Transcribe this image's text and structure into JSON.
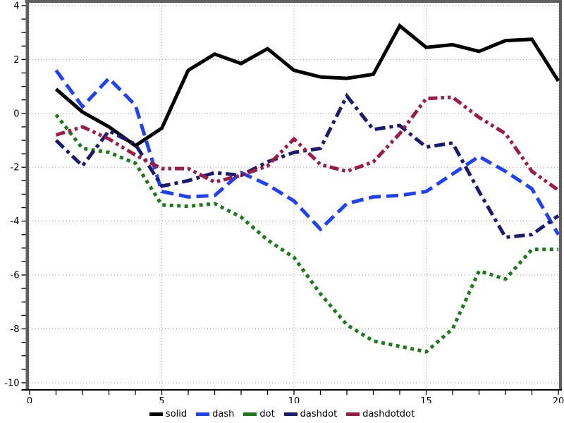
{
  "chart_data": {
    "type": "line",
    "title": "",
    "xlabel": "",
    "ylabel": "",
    "x": [
      1,
      2,
      3,
      4,
      5,
      6,
      7,
      8,
      9,
      10,
      11,
      12,
      13,
      14,
      15,
      16,
      17,
      18,
      19,
      20
    ],
    "series": [
      {
        "name": "solid",
        "style": "solid",
        "color": "#000000",
        "values": [
          0.9,
          0.05,
          -0.5,
          -1.2,
          -0.55,
          1.6,
          2.2,
          1.85,
          2.4,
          1.6,
          1.35,
          1.3,
          1.45,
          3.25,
          2.45,
          2.55,
          2.3,
          2.7,
          2.75,
          1.2
        ]
      },
      {
        "name": "dash",
        "style": "dash",
        "color": "#1e40ff",
        "values": [
          1.6,
          0.25,
          1.3,
          0.3,
          -2.9,
          -3.1,
          -3.05,
          -2.2,
          -2.65,
          -3.25,
          -4.3,
          -3.35,
          -3.1,
          -3.05,
          -2.9,
          -2.25,
          -1.6,
          -2.15,
          -2.8,
          -4.5
        ]
      },
      {
        "name": "dot",
        "style": "dot",
        "color": "#1b7b1b",
        "values": [
          -0.05,
          -1.3,
          -1.45,
          -1.85,
          -3.4,
          -3.45,
          -3.35,
          -3.85,
          -4.7,
          -5.35,
          -6.7,
          -7.85,
          -8.45,
          -8.65,
          -8.85,
          -8.0,
          -5.85,
          -6.15,
          -5.05,
          -5.05
        ]
      },
      {
        "name": "dashdot",
        "style": "dashdot",
        "color": "#1a1a70",
        "values": [
          -1.0,
          -1.95,
          -0.65,
          -1.15,
          -2.7,
          -2.5,
          -2.2,
          -2.3,
          -1.8,
          -1.45,
          -1.3,
          0.65,
          -0.6,
          -0.45,
          -1.25,
          -1.1,
          -2.9,
          -4.6,
          -4.5,
          -3.8
        ]
      },
      {
        "name": "dashdotdot",
        "style": "dashdotdot",
        "color": "#9e1b46",
        "values": [
          -0.8,
          -0.5,
          -0.95,
          -1.55,
          -2.05,
          -2.05,
          -2.55,
          -2.3,
          -1.95,
          -0.95,
          -1.9,
          -2.15,
          -1.8,
          -0.75,
          0.55,
          0.6,
          -0.15,
          -0.75,
          -2.15,
          -2.85
        ]
      }
    ],
    "xlim": [
      0,
      20
    ],
    "ylim": [
      -10,
      4
    ],
    "x_ticks_labeled": [
      0,
      5,
      10,
      15,
      20
    ],
    "y_ticks_labeled": [
      4,
      2,
      0,
      -2,
      -4,
      -6,
      -8,
      -10
    ],
    "x_minor_step": 1,
    "y_minor_step": 0.5,
    "grid": true,
    "grid_style": "dotted",
    "legend_position": "bottom",
    "frame_color": "#5f5f5f",
    "grid_color": "#9a9a9a",
    "line_width": 5
  }
}
